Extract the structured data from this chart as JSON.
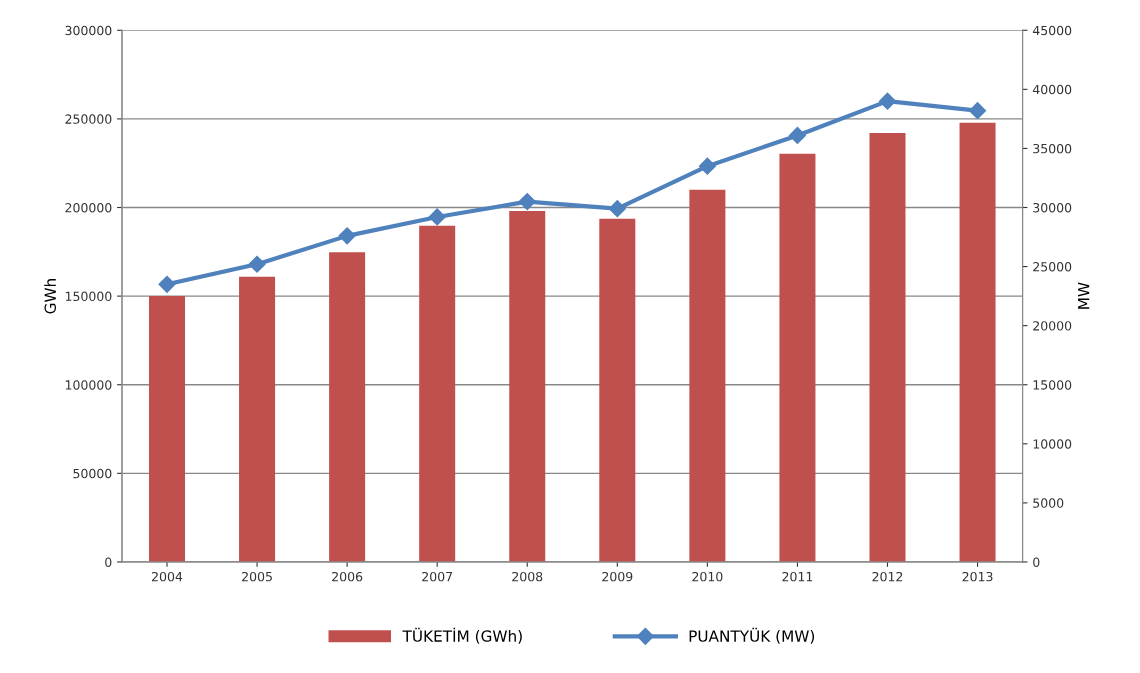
{
  "chart_data": {
    "type": "bar",
    "categories": [
      "2004",
      "2005",
      "2006",
      "2007",
      "2008",
      "2009",
      "2010",
      "2011",
      "2012",
      "2013"
    ],
    "series": [
      {
        "name": "TÜKETİM (GWh)",
        "color": "#c0504d",
        "values": [
          150000,
          160900,
          174700,
          189700,
          198100,
          193600,
          210000,
          230400,
          242000,
          247800
        ]
      },
      {
        "name": "PUANTYÜK (MW)",
        "color": "#4f81bd",
        "type": "line",
        "axis": "y2",
        "marker": "diamond",
        "values": [
          23500,
          25200,
          27600,
          29200,
          30500,
          29900,
          33500,
          36100,
          39000,
          38200
        ]
      }
    ],
    "ylabel": "GWh",
    "y2label": "MW",
    "ylim": [
      0,
      300000
    ],
    "yticks": [
      0,
      50000,
      100000,
      150000,
      200000,
      250000,
      300000
    ],
    "y2lim": [
      0,
      45000
    ],
    "y2ticks": [
      0,
      5000,
      10000,
      15000,
      20000,
      25000,
      30000,
      35000,
      40000,
      45000
    ],
    "grid": "y",
    "legend": "bottom"
  }
}
